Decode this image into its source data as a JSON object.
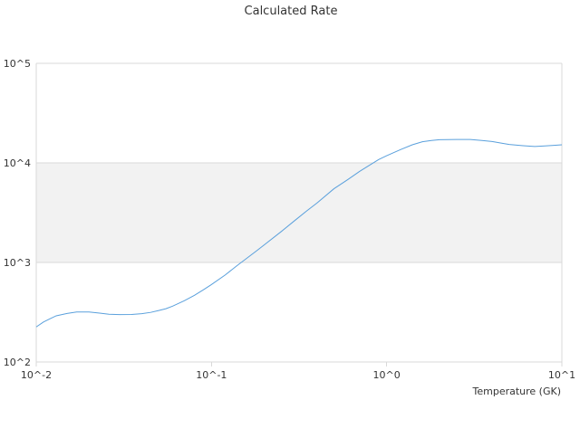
{
  "chart_data": {
    "type": "line",
    "title": "Calculated Rate",
    "xlabel": "Temperature (GK)",
    "ylabel": "",
    "x_scale": "log",
    "y_scale": "log",
    "xlim": [
      0.01,
      10
    ],
    "ylim": [
      100,
      100000
    ],
    "x_ticks": [
      {
        "value": 0.01,
        "label": "10^-2"
      },
      {
        "value": 0.1,
        "label": "10^-1"
      },
      {
        "value": 1,
        "label": "10^0"
      },
      {
        "value": 10,
        "label": "10^1"
      }
    ],
    "y_ticks": [
      {
        "value": 100,
        "label": "10^2"
      },
      {
        "value": 1000,
        "label": "10^3"
      },
      {
        "value": 10000,
        "label": "10^4"
      },
      {
        "value": 100000,
        "label": "10^5"
      }
    ],
    "grid": true,
    "shaded_band": {
      "y_from": 1000,
      "y_to": 10000,
      "color": "#f2f2f2"
    },
    "legend": "none",
    "colors": {
      "line": "#5aa0dc",
      "grid": "#d9d9d9",
      "axis": "#d9d9d9",
      "text": "#333333"
    },
    "series": [
      {
        "x": [
          0.01,
          0.011,
          0.012,
          0.013,
          0.015,
          0.017,
          0.02,
          0.023,
          0.026,
          0.03,
          0.035,
          0.04,
          0.045,
          0.05,
          0.055,
          0.06,
          0.07,
          0.08,
          0.09,
          0.1,
          0.12,
          0.14,
          0.16,
          0.18,
          0.2,
          0.25,
          0.3,
          0.35,
          0.4,
          0.5,
          0.6,
          0.7,
          0.8,
          0.9,
          1.0,
          1.2,
          1.4,
          1.6,
          1.8,
          2.0,
          2.5,
          3.0,
          3.5,
          4.0,
          4.5,
          5.0,
          6.0,
          7.0,
          8.0,
          9.0,
          10.0
        ],
        "values": [
          225,
          252,
          272,
          291,
          307,
          318,
          318,
          310,
          302,
          299,
          300,
          306,
          315,
          329,
          343,
          364,
          412,
          468,
          532,
          600,
          750,
          930,
          1110,
          1300,
          1500,
          2040,
          2650,
          3300,
          3950,
          5500,
          6800,
          8200,
          9500,
          10800,
          11800,
          13600,
          15200,
          16300,
          16800,
          17100,
          17200,
          17200,
          16800,
          16400,
          15800,
          15300,
          14900,
          14600,
          14800,
          15000,
          15200
        ]
      }
    ]
  }
}
